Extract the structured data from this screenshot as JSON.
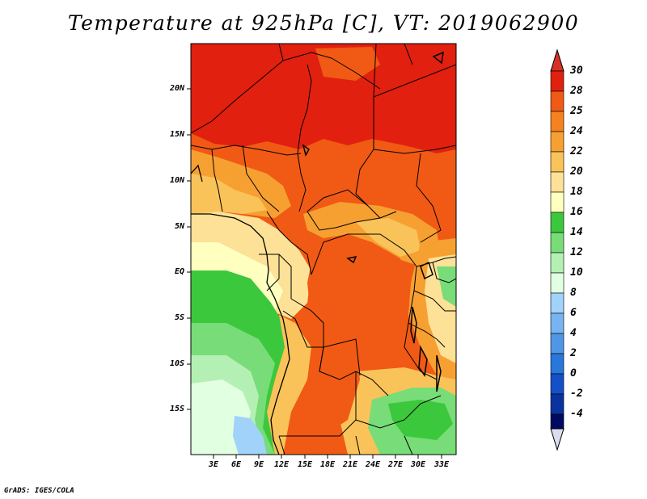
{
  "title": "Temperature at 925hPa [C], VT: 2019062900",
  "footer": "GrADS: IGES/COLA",
  "map": {
    "lat_labels": [
      "20N",
      "15N",
      "10N",
      "5N",
      "EQ",
      "5S",
      "10S",
      "15S"
    ],
    "lon_labels": [
      "3E",
      "6E",
      "9E",
      "12E",
      "15E",
      "18E",
      "21E",
      "24E",
      "27E",
      "30E",
      "33E"
    ]
  },
  "colorbar": {
    "labels": [
      "30",
      "28",
      "25",
      "24",
      "22",
      "20",
      "18",
      "16",
      "14",
      "12",
      "10",
      "8",
      "6",
      "4",
      "2",
      "0",
      "-2",
      "-4"
    ],
    "colors": {
      "above_30": "#d73027",
      "28_30": "#e1200f",
      "25_28": "#f05a14",
      "24_25": "#f5821e",
      "22_24": "#f7a032",
      "20_22": "#fac35a",
      "18_20": "#fde197",
      "16_18": "#ffffc0",
      "14_16": "#3cc83c",
      "12_14": "#78dc78",
      "10_12": "#b4f0b4",
      "8_10": "#e1ffe1",
      "6_8": "#a0d2fa",
      "4_6": "#78b4f0",
      "2_4": "#5096e6",
      "0_2": "#2878dc",
      "-2_0": "#1450c8",
      "-4_-2": "#0a32a0",
      "below_-4": "#dcdcf0"
    }
  }
}
